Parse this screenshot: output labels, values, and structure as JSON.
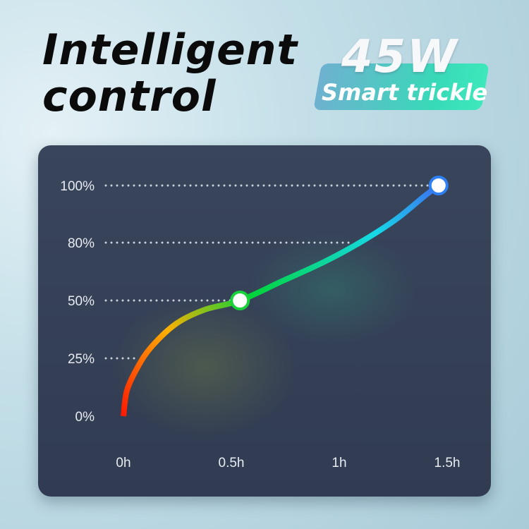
{
  "header": {
    "title_line1": "Intelligent",
    "title_line2": "control"
  },
  "badge": {
    "power": "45W",
    "label": "Smart trickle",
    "colors": [
      "#6fb1d0",
      "#3de8bb"
    ]
  },
  "chart_data": {
    "type": "line",
    "title": "",
    "xlabel": "",
    "ylabel": "",
    "x_ticks": [
      "0h",
      "0.5h",
      "1h",
      "1.5h"
    ],
    "x_tick_values": [
      0,
      0.5,
      1,
      1.5
    ],
    "y_ticks": [
      "0%",
      "25%",
      "50%",
      "80%",
      "100%"
    ],
    "y_tick_values": [
      0,
      25,
      50,
      80,
      100
    ],
    "xlim": [
      0,
      1.5
    ],
    "ylim": [
      0,
      100
    ],
    "grid": "dotted horizontal guides to curve",
    "series": [
      {
        "x": [
          0,
          0.016,
          0.065,
          0.13,
          0.245,
          0.376,
          0.54,
          0.735,
          0.93,
          1.095,
          1.26,
          1.39,
          1.46
        ],
        "y": [
          0,
          11,
          21,
          30,
          40,
          46,
          50,
          60,
          70,
          80,
          88,
          96,
          100
        ],
        "gradient": [
          "#ff1a00",
          "#ffb000",
          "#00d43a",
          "#16d8e8",
          "#3d6ff0"
        ]
      }
    ],
    "markers": [
      {
        "x": 0.54,
        "y": 50,
        "ring_color": "#19d13b"
      },
      {
        "x": 1.46,
        "y": 100,
        "ring_color": "#2f7ff2"
      }
    ],
    "guide_lines": [
      {
        "y": 100,
        "x_end": 1.46
      },
      {
        "y": 80,
        "x_end": 1.095
      },
      {
        "y": 50,
        "x_end": 0.54
      },
      {
        "y": 25,
        "x_end": 0.1
      }
    ]
  }
}
